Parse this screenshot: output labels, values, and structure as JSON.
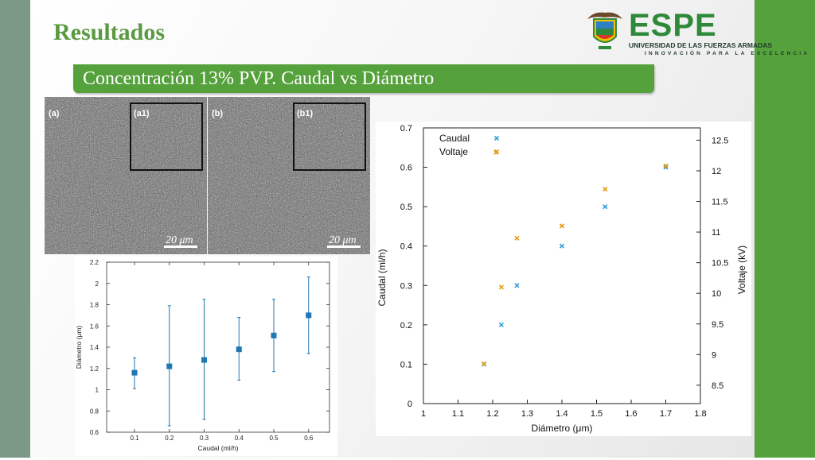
{
  "slide": {
    "title": "Resultados",
    "subtitle": "Concentración 13%  PVP. Caudal vs Diámetro",
    "colors": {
      "left_bar": "#7b9a85",
      "right_bar": "#55a13c",
      "title": "#5a9a42",
      "banner": "#55a13c"
    }
  },
  "logo": {
    "name": "ESPE",
    "line1": "UNIVERSIDAD DE LAS FUERZAS ARMADAS",
    "line2": "INNOVACIÓN PARA LA EXCELENCIA",
    "icon": "espe-shield-emblem"
  },
  "micrographs": [
    {
      "label": "(a)",
      "inset_label": "(a1)",
      "scale": "20 μm"
    },
    {
      "label": "(b)",
      "inset_label": "(b1)",
      "scale": "20 μm"
    }
  ],
  "chart_data": [
    {
      "type": "scatter",
      "title": "",
      "xlabel": "Caudal (ml/h)",
      "ylabel": "Diámetro (μm)",
      "x": [
        0.1,
        0.2,
        0.3,
        0.4,
        0.5,
        0.6
      ],
      "y": [
        1.16,
        1.22,
        1.28,
        1.38,
        1.51,
        1.7
      ],
      "y_low": [
        1.01,
        0.66,
        0.72,
        1.09,
        1.17,
        1.34
      ],
      "y_high": [
        1.3,
        1.79,
        1.85,
        1.68,
        1.85,
        2.06
      ],
      "xticks": [
        "0.1",
        "0.2",
        "0.3",
        "0.4",
        "0.5",
        "0.6"
      ],
      "yticks": [
        "0.6",
        "0.8",
        "1",
        "1.2",
        "1.4",
        "1.6",
        "1.8",
        "2",
        "2.2"
      ],
      "xlim": [
        0.02,
        0.66
      ],
      "ylim": [
        0.6,
        2.2
      ],
      "marker": "square",
      "color": "#1f77b4",
      "grid": false
    },
    {
      "type": "scatter",
      "title": "",
      "xlabel": "Diámetro (μm)",
      "ylabel": "Caudal (ml/h)",
      "y2label": "Voltaje (kV)",
      "xlim": [
        1.0,
        1.8
      ],
      "ylim": [
        0,
        0.7
      ],
      "y2lim": [
        8.2,
        12.7
      ],
      "xticks": [
        "1",
        "1.1",
        "1.2",
        "1.3",
        "1.4",
        "1.5",
        "1.6",
        "1.7",
        "1.8"
      ],
      "yticks": [
        "0",
        "0.1",
        "0.2",
        "0.3",
        "0.4",
        "0.5",
        "0.6",
        "0.7"
      ],
      "y2ticks": [
        "8.5",
        "9",
        "9.5",
        "10",
        "10.5",
        "11",
        "11.5",
        "12",
        "12.5"
      ],
      "legend": "top-left",
      "grid": false,
      "series": [
        {
          "name": "Caudal",
          "axis": "left",
          "color": "#2f9fd8",
          "marker": "x",
          "x": [
            1.175,
            1.225,
            1.27,
            1.4,
            1.525,
            1.7
          ],
          "y": [
            0.1,
            0.2,
            0.3,
            0.4,
            0.5,
            0.6
          ]
        },
        {
          "name": "Voltaje",
          "axis": "right",
          "color": "#e89a10",
          "marker": "x",
          "x": [
            1.175,
            1.225,
            1.27,
            1.4,
            1.525,
            1.7,
            1.21
          ],
          "y": [
            8.85,
            10.1,
            10.9,
            11.1,
            11.7,
            12.08,
            12.3
          ]
        }
      ]
    }
  ]
}
